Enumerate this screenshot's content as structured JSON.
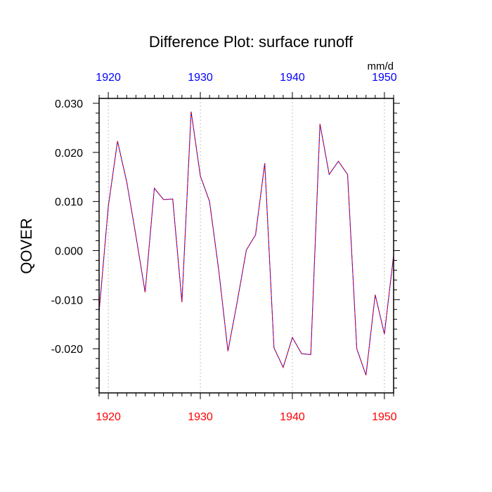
{
  "chart_data": {
    "type": "line",
    "title": "Difference Plot: surface runoff",
    "ylabel": "QOVER",
    "units_label": "mm/d",
    "xlim": [
      1919,
      1951
    ],
    "ylim": [
      -0.029,
      0.031
    ],
    "x_ticks": [
      1920,
      1930,
      1940,
      1950
    ],
    "x_tick_labels": [
      "1920",
      "1930",
      "1940",
      "1950"
    ],
    "y_ticks": [
      -0.02,
      -0.01,
      0.0,
      0.01,
      0.02,
      0.03
    ],
    "y_tick_labels": [
      "-0.020",
      "-0.010",
      "0.000",
      "0.010",
      "0.020",
      "0.030"
    ],
    "bottom_tick_color": "#ff0000",
    "top_tick_color": "#0000ff",
    "series_colors": [
      "#0000ff",
      "#ff0000"
    ],
    "grid": "vertical dotted at major x ticks",
    "x": [
      1919,
      1920,
      1921,
      1922,
      1923,
      1924,
      1925,
      1926,
      1927,
      1928,
      1929,
      1930,
      1931,
      1932,
      1933,
      1934,
      1935,
      1936,
      1937,
      1938,
      1939,
      1940,
      1941,
      1942,
      1943,
      1944,
      1945,
      1946,
      1947,
      1948,
      1949,
      1950,
      1951
    ],
    "series": [
      {
        "values": [
          -0.0125,
          0.009,
          0.0223,
          0.014,
          0.003,
          -0.0085,
          0.0127,
          0.0104,
          0.0105,
          -0.0105,
          0.0283,
          0.0152,
          0.01,
          -0.004,
          -0.0205,
          -0.0105,
          0.0001,
          0.0032,
          0.0178,
          -0.0198,
          -0.0238,
          -0.0177,
          -0.021,
          -0.0212,
          0.0258,
          0.0155,
          0.0182,
          0.0155,
          -0.02,
          -0.0254,
          -0.009,
          -0.017,
          -0.001
        ]
      },
      {
        "values": [
          -0.0125,
          0.009,
          0.0223,
          0.014,
          0.003,
          -0.0085,
          0.0127,
          0.0104,
          0.0105,
          -0.0105,
          0.0283,
          0.0152,
          0.01,
          -0.004,
          -0.0205,
          -0.0105,
          0.0001,
          0.0032,
          0.0178,
          -0.0198,
          -0.0238,
          -0.0177,
          -0.021,
          -0.0212,
          0.0258,
          0.0155,
          0.0182,
          0.0155,
          -0.02,
          -0.0254,
          -0.009,
          -0.017,
          -0.001
        ]
      }
    ]
  }
}
